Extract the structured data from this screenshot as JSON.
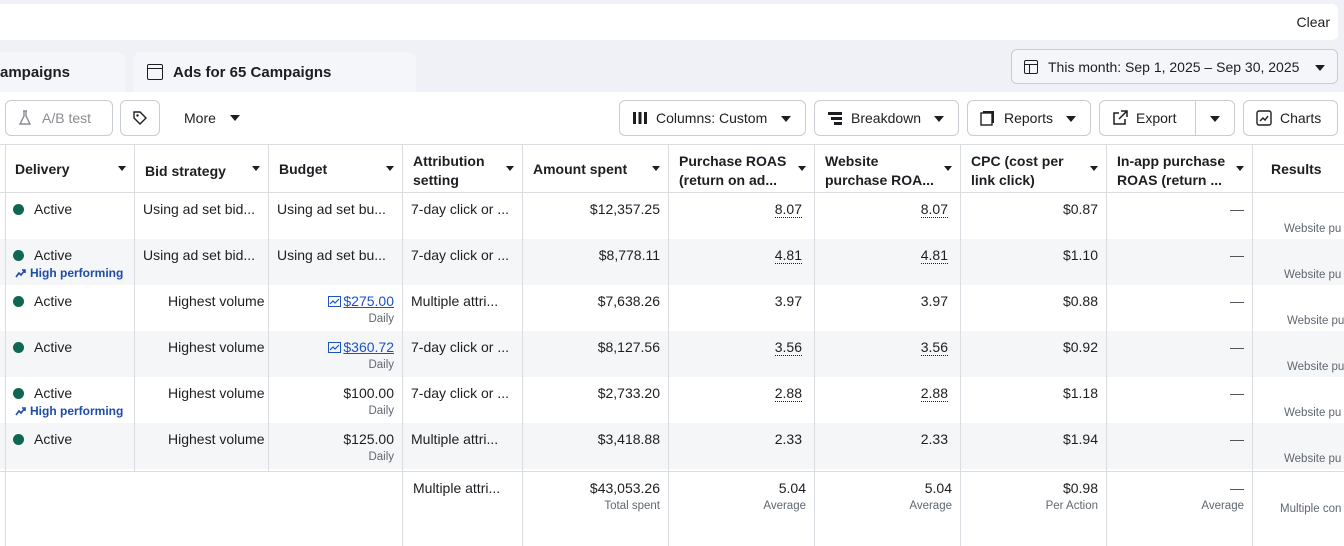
{
  "filter_bar": {
    "clear_label": "Clear"
  },
  "tabs": {
    "campaigns_label": "ampaigns",
    "ads_label": "Ads for 65 Campaigns"
  },
  "date_range": {
    "label": "This month: Sep 1, 2025 – Sep 30, 2025"
  },
  "toolbar": {
    "ab_test_label": "A/B test",
    "more_label": "More",
    "columns_label": "Columns: Custom",
    "breakdown_label": "Breakdown",
    "reports_label": "Reports",
    "export_label": "Export",
    "charts_label": "Charts"
  },
  "columns": {
    "delivery": "Delivery",
    "bid_strategy": "Bid strategy",
    "budget": "Budget",
    "attribution_l1": "Attribution",
    "attribution_l2": "setting",
    "amount_spent": "Amount spent",
    "purchase_roas_l1": "Purchase ROAS",
    "purchase_roas_l2": "(return on ad...",
    "website_roas_l1": "Website",
    "website_roas_l2": "purchase ROA...",
    "cpc_l1": "CPC (cost per",
    "cpc_l2": "link click)",
    "inapp_l1": "In-app purchase",
    "inapp_l2": "ROAS (return ...",
    "results": "Results"
  },
  "rows": [
    {
      "delivery": "Active",
      "high_performing": "",
      "bid": "Using ad set bid...",
      "budget": "Using ad set bu...",
      "budget_sub": "",
      "budget_link": false,
      "attribution": "7-day click or ...",
      "spent": "$12,357.25",
      "roas": "8.07",
      "web_roas": "8.07",
      "roas_dotted": true,
      "cpc": "$0.87",
      "inapp": "—",
      "results_sub": "Website pu"
    },
    {
      "delivery": "Active",
      "high_performing": "High performing",
      "bid": "Using ad set bid...",
      "budget": "Using ad set bu...",
      "budget_sub": "",
      "budget_link": false,
      "attribution": "7-day click or ...",
      "spent": "$8,778.11",
      "roas": "4.81",
      "web_roas": "4.81",
      "roas_dotted": true,
      "cpc": "$1.10",
      "inapp": "—",
      "results_sub": "Website pu"
    },
    {
      "delivery": "Active",
      "high_performing": "",
      "bid": "Highest volume",
      "budget": "$275.00",
      "budget_sub": "Daily",
      "budget_link": true,
      "attribution": "Multiple attri...",
      "spent": "$7,638.26",
      "roas": "3.97",
      "web_roas": "3.97",
      "roas_dotted": false,
      "cpc": "$0.88",
      "inapp": "—",
      "results_sub": "Website pu"
    },
    {
      "delivery": "Active",
      "high_performing": "",
      "bid": "Highest volume",
      "budget": "$360.72",
      "budget_sub": "Daily",
      "budget_link": true,
      "attribution": "7-day click or ...",
      "spent": "$8,127.56",
      "roas": "3.56",
      "web_roas": "3.56",
      "roas_dotted": true,
      "cpc": "$0.92",
      "inapp": "—",
      "results_sub": "Website pu"
    },
    {
      "delivery": "Active",
      "high_performing": "High performing",
      "bid": "Highest volume",
      "budget": "$100.00",
      "budget_sub": "Daily",
      "budget_link": false,
      "attribution": "7-day click or ...",
      "spent": "$2,733.20",
      "roas": "2.88",
      "web_roas": "2.88",
      "roas_dotted": true,
      "cpc": "$1.18",
      "inapp": "—",
      "results_sub": "Website pu"
    },
    {
      "delivery": "Active",
      "high_performing": "",
      "bid": "Highest volume",
      "budget": "$125.00",
      "budget_sub": "Daily",
      "budget_link": false,
      "attribution": "Multiple attri...",
      "spent": "$3,418.88",
      "roas": "2.33",
      "web_roas": "2.33",
      "roas_dotted": false,
      "cpc": "$1.94",
      "inapp": "—",
      "results_sub": "Website pu"
    }
  ],
  "totals": {
    "attribution": "Multiple attri...",
    "spent": "$43,053.26",
    "spent_sub": "Total spent",
    "roas": "5.04",
    "roas_sub": "Average",
    "web_roas": "5.04",
    "web_roas_sub": "Average",
    "cpc": "$0.98",
    "cpc_sub": "Per Action",
    "inapp": "—",
    "inapp_sub": "Average",
    "results_sub": "Multiple con"
  },
  "colors": {
    "active_dot": "#0f6652",
    "high_performing": "#1f4ca8",
    "link": "#1b52c4"
  }
}
